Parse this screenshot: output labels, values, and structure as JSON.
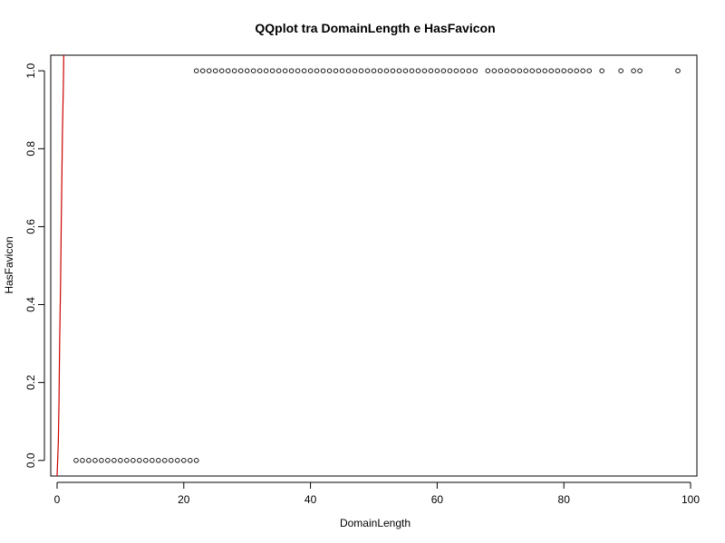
{
  "chart_data": {
    "type": "scatter",
    "title": "QQplot tra DomainLength e HasFavicon",
    "xlabel": "DomainLength",
    "ylabel": "HasFavicon",
    "xlim": [
      -1,
      101
    ],
    "ylim": [
      -0.04,
      1.04
    ],
    "x_ticks": [
      0,
      20,
      40,
      60,
      80,
      100
    ],
    "y_ticks": [
      0.0,
      0.2,
      0.4,
      0.6,
      0.8,
      1.0
    ],
    "x_tick_labels": [
      "0",
      "20",
      "40",
      "60",
      "80",
      "100"
    ],
    "y_tick_labels": [
      "0.0",
      "0.2",
      "0.4",
      "0.6",
      "0.8",
      "1.0"
    ],
    "grid": false,
    "series": [
      {
        "marker": "open-circle",
        "color": "#000000",
        "points": [
          [
            3,
            0
          ],
          [
            4,
            0
          ],
          [
            5,
            0
          ],
          [
            6,
            0
          ],
          [
            7,
            0
          ],
          [
            8,
            0
          ],
          [
            9,
            0
          ],
          [
            10,
            0
          ],
          [
            11,
            0
          ],
          [
            12,
            0
          ],
          [
            13,
            0
          ],
          [
            14,
            0
          ],
          [
            15,
            0
          ],
          [
            16,
            0
          ],
          [
            17,
            0
          ],
          [
            18,
            0
          ],
          [
            19,
            0
          ],
          [
            20,
            0
          ],
          [
            21,
            0
          ],
          [
            22,
            0
          ],
          [
            22,
            1
          ],
          [
            23,
            1
          ],
          [
            24,
            1
          ],
          [
            25,
            1
          ],
          [
            26,
            1
          ],
          [
            27,
            1
          ],
          [
            28,
            1
          ],
          [
            29,
            1
          ],
          [
            30,
            1
          ],
          [
            31,
            1
          ],
          [
            32,
            1
          ],
          [
            33,
            1
          ],
          [
            34,
            1
          ],
          [
            35,
            1
          ],
          [
            36,
            1
          ],
          [
            37,
            1
          ],
          [
            38,
            1
          ],
          [
            39,
            1
          ],
          [
            40,
            1
          ],
          [
            41,
            1
          ],
          [
            42,
            1
          ],
          [
            43,
            1
          ],
          [
            44,
            1
          ],
          [
            45,
            1
          ],
          [
            46,
            1
          ],
          [
            47,
            1
          ],
          [
            48,
            1
          ],
          [
            49,
            1
          ],
          [
            50,
            1
          ],
          [
            51,
            1
          ],
          [
            52,
            1
          ],
          [
            53,
            1
          ],
          [
            54,
            1
          ],
          [
            55,
            1
          ],
          [
            56,
            1
          ],
          [
            57,
            1
          ],
          [
            58,
            1
          ],
          [
            59,
            1
          ],
          [
            60,
            1
          ],
          [
            61,
            1
          ],
          [
            62,
            1
          ],
          [
            63,
            1
          ],
          [
            64,
            1
          ],
          [
            65,
            1
          ],
          [
            66,
            1
          ],
          [
            68,
            1
          ],
          [
            69,
            1
          ],
          [
            70,
            1
          ],
          [
            71,
            1
          ],
          [
            72,
            1
          ],
          [
            73,
            1
          ],
          [
            74,
            1
          ],
          [
            75,
            1
          ],
          [
            76,
            1
          ],
          [
            77,
            1
          ],
          [
            78,
            1
          ],
          [
            79,
            1
          ],
          [
            80,
            1
          ],
          [
            81,
            1
          ],
          [
            82,
            1
          ],
          [
            83,
            1
          ],
          [
            84,
            1
          ],
          [
            86,
            1
          ],
          [
            89,
            1
          ],
          [
            91,
            1
          ],
          [
            92,
            1
          ],
          [
            98,
            1
          ]
        ]
      },
      {
        "line": true,
        "color": "#cc0000",
        "points": [
          [
            0,
            -0.04
          ],
          [
            0.2,
            0.05
          ],
          [
            0.3,
            0.15
          ],
          [
            0.4,
            0.3
          ],
          [
            0.55,
            0.45
          ],
          [
            0.65,
            0.6
          ],
          [
            0.75,
            0.72
          ],
          [
            0.85,
            0.85
          ],
          [
            1.0,
            0.97
          ],
          [
            1.05,
            1.04
          ]
        ]
      }
    ]
  }
}
